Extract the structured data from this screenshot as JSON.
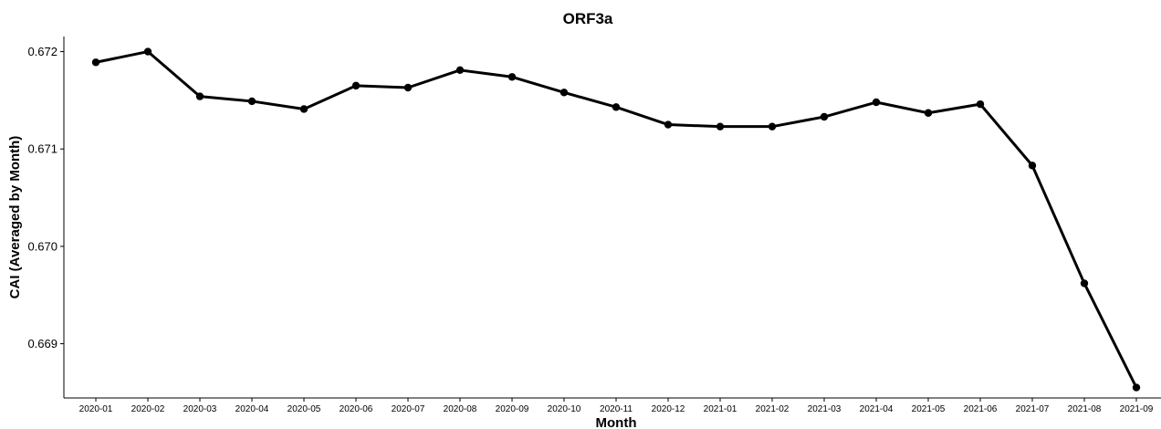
{
  "chart_data": {
    "type": "line",
    "title": "ORF3a",
    "xlabel": "Month",
    "ylabel": "CAI (Averaged by Month)",
    "categories": [
      "2020-01",
      "2020-02",
      "2020-03",
      "2020-04",
      "2020-05",
      "2020-06",
      "2020-07",
      "2020-08",
      "2020-09",
      "2020-10",
      "2020-11",
      "2020-12",
      "2021-01",
      "2021-02",
      "2021-03",
      "2021-04",
      "2021-05",
      "2021-06",
      "2021-07",
      "2021-08",
      "2021-09"
    ],
    "series": [
      {
        "values": [
          0.67189,
          0.672,
          0.67154,
          0.67149,
          0.67141,
          0.67165,
          0.67163,
          0.67181,
          0.67174,
          0.67158,
          0.67143,
          0.67125,
          0.67123,
          0.67123,
          0.67133,
          0.67148,
          0.67137,
          0.67146,
          0.67083,
          0.66962,
          0.66855
        ]
      }
    ],
    "yticks": [
      "0.669",
      "0.670",
      "0.671",
      "0.672"
    ],
    "ytick_values": [
      0.669,
      0.67,
      0.671,
      0.672
    ],
    "ylim": [
      0.668443,
      0.672155
    ],
    "grid": false,
    "legend": "none",
    "line_color": "#000000",
    "point_color": "#000000"
  }
}
